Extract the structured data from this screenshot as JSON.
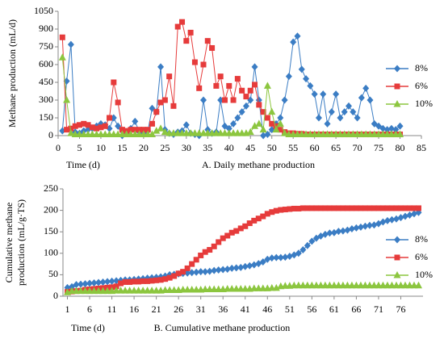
{
  "chart_data": [
    {
      "type": "line",
      "ylabel": [
        "Methane production (mL/d)"
      ],
      "xlabel": "Time (d)",
      "caption": "A. Daily methane production",
      "xlim": [
        0,
        85
      ],
      "xticks": [
        0,
        5,
        10,
        15,
        20,
        25,
        30,
        35,
        40,
        45,
        50,
        55,
        60,
        65,
        70,
        75,
        80,
        85
      ],
      "ylim": [
        0,
        1050
      ],
      "yticks": [
        0,
        150,
        300,
        450,
        600,
        750,
        900,
        1050
      ],
      "legend": "right",
      "x": [
        1,
        2,
        3,
        4,
        5,
        6,
        7,
        8,
        9,
        10,
        11,
        12,
        13,
        14,
        15,
        16,
        17,
        18,
        19,
        20,
        21,
        22,
        23,
        24,
        25,
        26,
        27,
        28,
        29,
        30,
        31,
        32,
        33,
        34,
        35,
        36,
        37,
        38,
        39,
        40,
        41,
        42,
        43,
        44,
        45,
        46,
        47,
        48,
        49,
        50,
        51,
        52,
        53,
        54,
        55,
        56,
        57,
        58,
        59,
        60,
        61,
        62,
        63,
        64,
        65,
        66,
        67,
        68,
        69,
        70,
        71,
        72,
        73,
        74,
        75,
        76,
        77,
        78,
        79,
        80
      ],
      "series": [
        {
          "name": "8%",
          "color": "#3b7dc4",
          "marker": "diamond",
          "values": [
            40,
            460,
            770,
            30,
            20,
            40,
            50,
            60,
            80,
            100,
            90,
            60,
            150,
            80,
            0,
            20,
            60,
            120,
            30,
            20,
            40,
            230,
            200,
            580,
            50,
            20,
            10,
            30,
            40,
            90,
            20,
            10,
            0,
            300,
            50,
            20,
            30,
            300,
            80,
            60,
            100,
            150,
            200,
            250,
            300,
            580,
            300,
            0,
            10,
            50,
            100,
            150,
            300,
            500,
            790,
            840,
            560,
            480,
            420,
            350,
            150,
            350,
            100,
            200,
            350,
            150,
            200,
            250,
            200,
            150,
            320,
            400,
            300,
            100,
            80,
            60,
            50,
            60,
            50,
            80
          ]
        },
        {
          "name": "6%",
          "color": "#e63b3b",
          "marker": "square",
          "values": [
            830,
            50,
            60,
            80,
            90,
            100,
            90,
            70,
            60,
            70,
            80,
            150,
            450,
            280,
            50,
            40,
            50,
            50,
            50,
            50,
            50,
            100,
            200,
            280,
            300,
            500,
            250,
            920,
            960,
            800,
            870,
            620,
            400,
            600,
            800,
            740,
            420,
            500,
            300,
            420,
            300,
            480,
            380,
            330,
            380,
            430,
            260,
            200,
            150,
            100,
            80,
            50,
            30,
            20,
            20,
            15,
            15,
            10,
            10,
            10,
            10,
            10,
            10,
            10,
            10,
            10,
            10,
            10,
            10,
            10,
            10,
            10,
            10,
            10,
            10,
            10,
            10,
            10,
            10,
            10
          ]
        },
        {
          "name": "10%",
          "color": "#8cc63f",
          "marker": "triangle",
          "values": [
            660,
            300,
            20,
            10,
            10,
            10,
            10,
            10,
            10,
            10,
            10,
            10,
            10,
            10,
            10,
            10,
            10,
            10,
            10,
            10,
            10,
            10,
            40,
            60,
            30,
            20,
            20,
            20,
            20,
            20,
            20,
            20,
            20,
            20,
            20,
            20,
            20,
            20,
            20,
            20,
            20,
            20,
            20,
            20,
            30,
            80,
            100,
            50,
            420,
            200,
            50,
            100,
            20,
            10,
            10,
            10,
            10,
            10,
            10,
            10,
            10,
            10,
            10,
            10,
            10,
            10,
            10,
            10,
            10,
            10,
            10,
            10,
            10,
            10,
            10,
            10,
            10,
            10,
            10,
            10
          ]
        }
      ]
    },
    {
      "type": "line",
      "ylabel": [
        "Cumulative methane",
        "production (mL/g·TS)"
      ],
      "xlabel": "Time (d)",
      "caption": "B. Cumulative methane production",
      "xlim": [
        0,
        81
      ],
      "xticks": [
        1,
        6,
        11,
        16,
        21,
        26,
        31,
        36,
        41,
        46,
        51,
        56,
        61,
        66,
        71,
        76
      ],
      "ylim": [
        0,
        250
      ],
      "yticks": [
        0,
        50,
        100,
        150,
        200,
        250
      ],
      "legend": "right",
      "x": [
        1,
        2,
        3,
        4,
        5,
        6,
        7,
        8,
        9,
        10,
        11,
        12,
        13,
        14,
        15,
        16,
        17,
        18,
        19,
        20,
        21,
        22,
        23,
        24,
        25,
        26,
        27,
        28,
        29,
        30,
        31,
        32,
        33,
        34,
        35,
        36,
        37,
        38,
        39,
        40,
        41,
        42,
        43,
        44,
        45,
        46,
        47,
        48,
        49,
        50,
        51,
        52,
        53,
        54,
        55,
        56,
        57,
        58,
        59,
        60,
        61,
        62,
        63,
        64,
        65,
        66,
        67,
        68,
        69,
        70,
        71,
        72,
        73,
        74,
        75,
        76,
        77,
        78,
        79,
        80
      ],
      "series": [
        {
          "name": "8%",
          "color": "#3b7dc4",
          "marker": "diamond",
          "values": [
            20,
            22,
            27,
            28,
            29,
            30,
            31,
            32,
            33,
            34,
            35,
            36,
            37,
            38,
            38,
            39,
            40,
            41,
            42,
            43,
            44,
            45,
            47,
            50,
            51,
            52,
            53,
            54,
            55,
            56,
            57,
            57,
            58,
            60,
            61,
            62,
            63,
            65,
            66,
            67,
            69,
            71,
            73,
            76,
            80,
            86,
            89,
            90,
            90,
            91,
            93,
            96,
            100,
            108,
            118,
            128,
            135,
            140,
            144,
            147,
            148,
            151,
            152,
            154,
            157,
            159,
            161,
            163,
            165,
            166,
            169,
            173,
            176,
            178,
            180,
            183,
            186,
            189,
            192,
            195
          ]
        },
        {
          "name": "6%",
          "color": "#e63b3b",
          "marker": "square",
          "values": [
            10,
            11,
            12,
            13,
            15,
            16,
            17,
            18,
            19,
            20,
            21,
            23,
            30,
            33,
            33,
            34,
            34,
            35,
            35,
            36,
            37,
            38,
            40,
            43,
            47,
            53,
            57,
            65,
            75,
            85,
            95,
            103,
            108,
            116,
            126,
            135,
            141,
            148,
            152,
            158,
            163,
            170,
            176,
            181,
            186,
            192,
            196,
            199,
            201,
            202,
            203,
            204,
            204,
            205,
            205,
            205,
            205,
            205,
            205,
            205,
            205,
            205,
            205,
            205,
            205,
            205,
            205,
            205,
            205,
            205,
            205,
            205,
            205,
            205,
            205,
            205,
            205,
            205,
            205,
            205
          ]
        },
        {
          "name": "10%",
          "color": "#8cc63f",
          "marker": "triangle",
          "values": [
            9,
            12,
            12,
            12,
            12,
            12,
            12,
            12,
            12,
            12,
            12,
            13,
            13,
            13,
            13,
            13,
            13,
            13,
            13,
            13,
            13,
            13,
            14,
            14,
            14,
            14,
            15,
            15,
            15,
            15,
            15,
            16,
            16,
            16,
            16,
            16,
            17,
            17,
            17,
            17,
            17,
            17,
            18,
            18,
            18,
            18,
            19,
            19,
            23,
            24,
            24,
            25,
            25,
            25,
            25,
            25,
            25,
            25,
            25,
            25,
            25,
            25,
            25,
            25,
            25,
            25,
            25,
            25,
            25,
            25,
            25,
            25,
            25,
            25,
            25,
            25,
            25,
            25,
            25,
            25
          ]
        }
      ]
    }
  ]
}
